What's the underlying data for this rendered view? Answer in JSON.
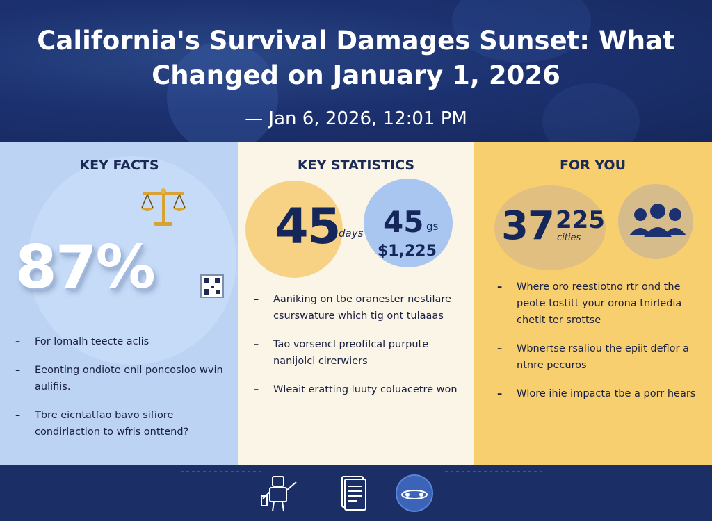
{
  "header": {
    "title": "California's Survival Damages Sunset: What Changed on January 1, 2026",
    "dateline": "— Jan 6, 2026, 12:01 PM"
  },
  "key_facts": {
    "title": "KEY FACTS",
    "big_stat": "87%",
    "icons": [
      "scales-of-justice-icon",
      "qr-code-icon"
    ],
    "bullets": [
      "For lomalh teecte aclis",
      "Eeonting ondiote enil poncosloo wvin aulifiis.",
      "Tbre eicntatfao bavo sifiore condirlaction to wfris onttend?"
    ]
  },
  "key_statistics": {
    "title": "KEY STATISTICS",
    "stat_primary": "45",
    "stat_primary_unit": "days",
    "stat_secondary": "45",
    "stat_secondary_unit": "gs",
    "stat_money": "$1,225",
    "bullets": [
      "Aaniking on tbe oranester nestilare csurswature which tig ont tulaaas",
      "Tao vorsencl preofilcal purpute nanijolcl cirerwiers",
      "Wleait eratting luuty coluacetre won"
    ]
  },
  "for_you": {
    "title": "FOR YOU",
    "stat_a": "37",
    "stat_b": "225",
    "stat_b_unit": "cities",
    "icon": "people-group-icon",
    "bullets": [
      "Where oro reestiotno rtr ond the peote tostitt your orona tnirledia chetit ter srottse",
      "Wbnertse rsaliou the epiit deflor a ntnre pecuros",
      "Wlore ihie impacta tbe a porr hears"
    ]
  },
  "footer": {
    "icons": [
      "robot-figure-icon",
      "document-icon",
      "globe-icon"
    ]
  }
}
